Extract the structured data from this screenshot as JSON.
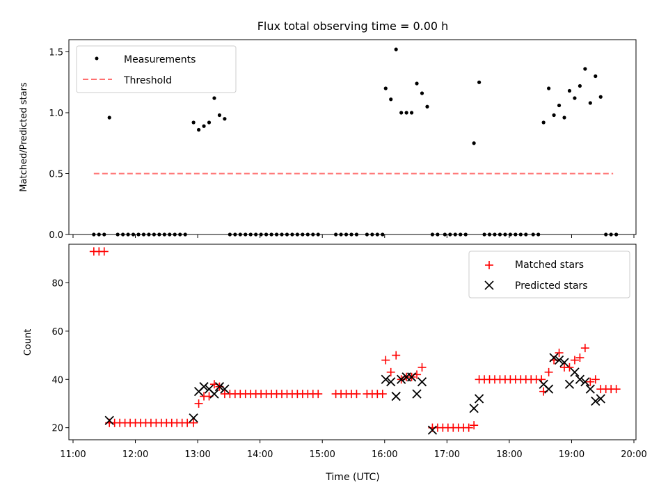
{
  "title": "Flux total observing time = 0.00 h",
  "x_tick_labels": [
    "11:00",
    "12:00",
    "13:00",
    "14:00",
    "15:00",
    "16:00",
    "17:00",
    "18:00",
    "19:00",
    "20:00"
  ],
  "xlabel": "Time (UTC)",
  "colors": {
    "measurement": "#000000",
    "threshold": "#ff7070",
    "matched": "#ff0000",
    "predicted": "#000000"
  },
  "chart_data": [
    {
      "type": "scatter",
      "ylabel": "Matched/Predicted stars",
      "xlim": [
        "10:56",
        "20:02"
      ],
      "ylim": [
        0,
        1.6
      ],
      "y_ticks": [
        "0.0",
        "0.5",
        "1.0",
        "1.5"
      ],
      "legend_placement": "upper-left",
      "series": [
        {
          "name": "Measurements",
          "type": "scatter",
          "points": [
            [
              "11:20",
              0
            ],
            [
              "11:25",
              0
            ],
            [
              "11:30",
              0
            ],
            [
              "11:35",
              0.96
            ],
            [
              "11:43",
              0
            ],
            [
              "11:48",
              0
            ],
            [
              "11:53",
              0
            ],
            [
              "11:58",
              0
            ],
            [
              "12:03",
              0
            ],
            [
              "12:08",
              0
            ],
            [
              "12:13",
              0
            ],
            [
              "12:18",
              0
            ],
            [
              "12:23",
              0
            ],
            [
              "12:28",
              0
            ],
            [
              "12:33",
              0
            ],
            [
              "12:38",
              0
            ],
            [
              "12:43",
              0
            ],
            [
              "12:48",
              0
            ],
            [
              "12:56",
              0.92
            ],
            [
              "13:01",
              0.86
            ],
            [
              "13:06",
              0.89
            ],
            [
              "13:11",
              0.92
            ],
            [
              "13:16",
              1.12
            ],
            [
              "13:21",
              0.98
            ],
            [
              "13:26",
              0.95
            ],
            [
              "13:31",
              0
            ],
            [
              "13:36",
              0
            ],
            [
              "13:41",
              0
            ],
            [
              "13:46",
              0
            ],
            [
              "13:51",
              0
            ],
            [
              "13:56",
              0
            ],
            [
              "14:01",
              0
            ],
            [
              "14:06",
              0
            ],
            [
              "14:11",
              0
            ],
            [
              "14:16",
              0
            ],
            [
              "14:21",
              0
            ],
            [
              "14:26",
              0
            ],
            [
              "14:31",
              0
            ],
            [
              "14:36",
              0
            ],
            [
              "14:41",
              0
            ],
            [
              "14:46",
              0
            ],
            [
              "14:51",
              0
            ],
            [
              "14:56",
              0
            ],
            [
              "15:13",
              0
            ],
            [
              "15:18",
              0
            ],
            [
              "15:23",
              0
            ],
            [
              "15:28",
              0
            ],
            [
              "15:33",
              0
            ],
            [
              "15:43",
              0
            ],
            [
              "15:48",
              0
            ],
            [
              "15:53",
              0
            ],
            [
              "15:58",
              0
            ],
            [
              "16:01",
              1.2
            ],
            [
              "16:06",
              1.11
            ],
            [
              "16:11",
              1.52
            ],
            [
              "16:16",
              1.0
            ],
            [
              "16:21",
              1.0
            ],
            [
              "16:26",
              1.0
            ],
            [
              "16:31",
              1.24
            ],
            [
              "16:36",
              1.16
            ],
            [
              "16:41",
              1.05
            ],
            [
              "16:46",
              0
            ],
            [
              "16:51",
              0
            ],
            [
              "16:58",
              0
            ],
            [
              "17:03",
              0
            ],
            [
              "17:08",
              0
            ],
            [
              "17:13",
              0
            ],
            [
              "17:18",
              0
            ],
            [
              "17:26",
              0.75
            ],
            [
              "17:31",
              1.25
            ],
            [
              "17:36",
              0
            ],
            [
              "17:41",
              0
            ],
            [
              "17:46",
              0
            ],
            [
              "17:51",
              0
            ],
            [
              "17:56",
              0
            ],
            [
              "18:01",
              0
            ],
            [
              "18:06",
              0
            ],
            [
              "18:11",
              0
            ],
            [
              "18:16",
              0
            ],
            [
              "18:23",
              0
            ],
            [
              "18:28",
              0
            ],
            [
              "18:33",
              0.92
            ],
            [
              "18:38",
              1.2
            ],
            [
              "18:43",
              0.98
            ],
            [
              "18:48",
              1.06
            ],
            [
              "18:53",
              0.96
            ],
            [
              "18:58",
              1.18
            ],
            [
              "19:03",
              1.12
            ],
            [
              "19:08",
              1.22
            ],
            [
              "19:13",
              1.36
            ],
            [
              "19:18",
              1.08
            ],
            [
              "19:23",
              1.3
            ],
            [
              "19:28",
              1.13
            ],
            [
              "19:33",
              0
            ],
            [
              "19:38",
              0
            ],
            [
              "19:43",
              0
            ]
          ]
        },
        {
          "name": "Threshold",
          "type": "line",
          "style": "dashed",
          "points": [
            [
              "11:20",
              0.5
            ],
            [
              "19:40",
              0.5
            ]
          ]
        }
      ]
    },
    {
      "type": "scatter",
      "ylabel": "Count",
      "xlim": [
        "10:56",
        "20:02"
      ],
      "ylim": [
        15,
        96
      ],
      "y_ticks": [
        "20",
        "40",
        "60",
        "80"
      ],
      "legend_placement": "upper-right",
      "series": [
        {
          "name": "Matched stars",
          "marker": "+",
          "points": [
            [
              "11:20",
              93
            ],
            [
              "11:25",
              93
            ],
            [
              "11:30",
              93
            ],
            [
              "11:35",
              22
            ],
            [
              "11:40",
              22
            ],
            [
              "11:45",
              22
            ],
            [
              "11:50",
              22
            ],
            [
              "11:55",
              22
            ],
            [
              "12:00",
              22
            ],
            [
              "12:05",
              22
            ],
            [
              "12:10",
              22
            ],
            [
              "12:15",
              22
            ],
            [
              "12:20",
              22
            ],
            [
              "12:25",
              22
            ],
            [
              "12:30",
              22
            ],
            [
              "12:35",
              22
            ],
            [
              "12:40",
              22
            ],
            [
              "12:45",
              22
            ],
            [
              "12:50",
              22
            ],
            [
              "12:56",
              22
            ],
            [
              "13:01",
              30
            ],
            [
              "13:06",
              33
            ],
            [
              "13:11",
              33
            ],
            [
              "13:16",
              38
            ],
            [
              "13:21",
              37
            ],
            [
              "13:26",
              34
            ],
            [
              "13:31",
              34
            ],
            [
              "13:36",
              34
            ],
            [
              "13:41",
              34
            ],
            [
              "13:46",
              34
            ],
            [
              "13:51",
              34
            ],
            [
              "13:56",
              34
            ],
            [
              "14:01",
              34
            ],
            [
              "14:06",
              34
            ],
            [
              "14:11",
              34
            ],
            [
              "14:16",
              34
            ],
            [
              "14:21",
              34
            ],
            [
              "14:26",
              34
            ],
            [
              "14:31",
              34
            ],
            [
              "14:36",
              34
            ],
            [
              "14:41",
              34
            ],
            [
              "14:46",
              34
            ],
            [
              "14:51",
              34
            ],
            [
              "14:56",
              34
            ],
            [
              "15:13",
              34
            ],
            [
              "15:18",
              34
            ],
            [
              "15:23",
              34
            ],
            [
              "15:28",
              34
            ],
            [
              "15:33",
              34
            ],
            [
              "15:43",
              34
            ],
            [
              "15:48",
              34
            ],
            [
              "15:53",
              34
            ],
            [
              "15:58",
              34
            ],
            [
              "16:01",
              48
            ],
            [
              "16:06",
              43
            ],
            [
              "16:11",
              50
            ],
            [
              "16:16",
              40
            ],
            [
              "16:21",
              41
            ],
            [
              "16:26",
              41
            ],
            [
              "16:31",
              42
            ],
            [
              "16:36",
              45
            ],
            [
              "16:46",
              20
            ],
            [
              "16:51",
              20
            ],
            [
              "16:56",
              20
            ],
            [
              "17:01",
              20
            ],
            [
              "17:06",
              20
            ],
            [
              "17:11",
              20
            ],
            [
              "17:16",
              20
            ],
            [
              "17:21",
              20
            ],
            [
              "17:26",
              21
            ],
            [
              "17:31",
              40
            ],
            [
              "17:36",
              40
            ],
            [
              "17:41",
              40
            ],
            [
              "17:46",
              40
            ],
            [
              "17:51",
              40
            ],
            [
              "17:56",
              40
            ],
            [
              "18:01",
              40
            ],
            [
              "18:06",
              40
            ],
            [
              "18:11",
              40
            ],
            [
              "18:16",
              40
            ],
            [
              "18:21",
              40
            ],
            [
              "18:26",
              40
            ],
            [
              "18:31",
              40
            ],
            [
              "18:33",
              35
            ],
            [
              "18:38",
              43
            ],
            [
              "18:43",
              48
            ],
            [
              "18:48",
              51
            ],
            [
              "18:53",
              45
            ],
            [
              "18:58",
              45
            ],
            [
              "19:03",
              48
            ],
            [
              "19:08",
              49
            ],
            [
              "19:13",
              53
            ],
            [
              "19:18",
              39
            ],
            [
              "19:23",
              40
            ],
            [
              "19:28",
              36
            ],
            [
              "19:33",
              36
            ],
            [
              "19:38",
              36
            ],
            [
              "19:43",
              36
            ]
          ]
        },
        {
          "name": "Predicted stars",
          "marker": "x",
          "points": [
            [
              "11:35",
              23
            ],
            [
              "12:56",
              24
            ],
            [
              "13:01",
              35
            ],
            [
              "13:06",
              37
            ],
            [
              "13:11",
              36
            ],
            [
              "13:16",
              34
            ],
            [
              "13:21",
              37
            ],
            [
              "13:26",
              36
            ],
            [
              "16:01",
              40
            ],
            [
              "16:06",
              39
            ],
            [
              "16:11",
              33
            ],
            [
              "16:16",
              40
            ],
            [
              "16:21",
              41
            ],
            [
              "16:26",
              41
            ],
            [
              "16:31",
              34
            ],
            [
              "16:36",
              39
            ],
            [
              "16:46",
              19
            ],
            [
              "17:26",
              28
            ],
            [
              "17:31",
              32
            ],
            [
              "18:33",
              38
            ],
            [
              "18:38",
              36
            ],
            [
              "18:43",
              49
            ],
            [
              "18:48",
              48
            ],
            [
              "18:53",
              47
            ],
            [
              "18:58",
              38
            ],
            [
              "19:03",
              43
            ],
            [
              "19:08",
              40
            ],
            [
              "19:13",
              39
            ],
            [
              "19:18",
              36
            ],
            [
              "19:23",
              31
            ],
            [
              "19:28",
              32
            ]
          ]
        }
      ]
    }
  ]
}
